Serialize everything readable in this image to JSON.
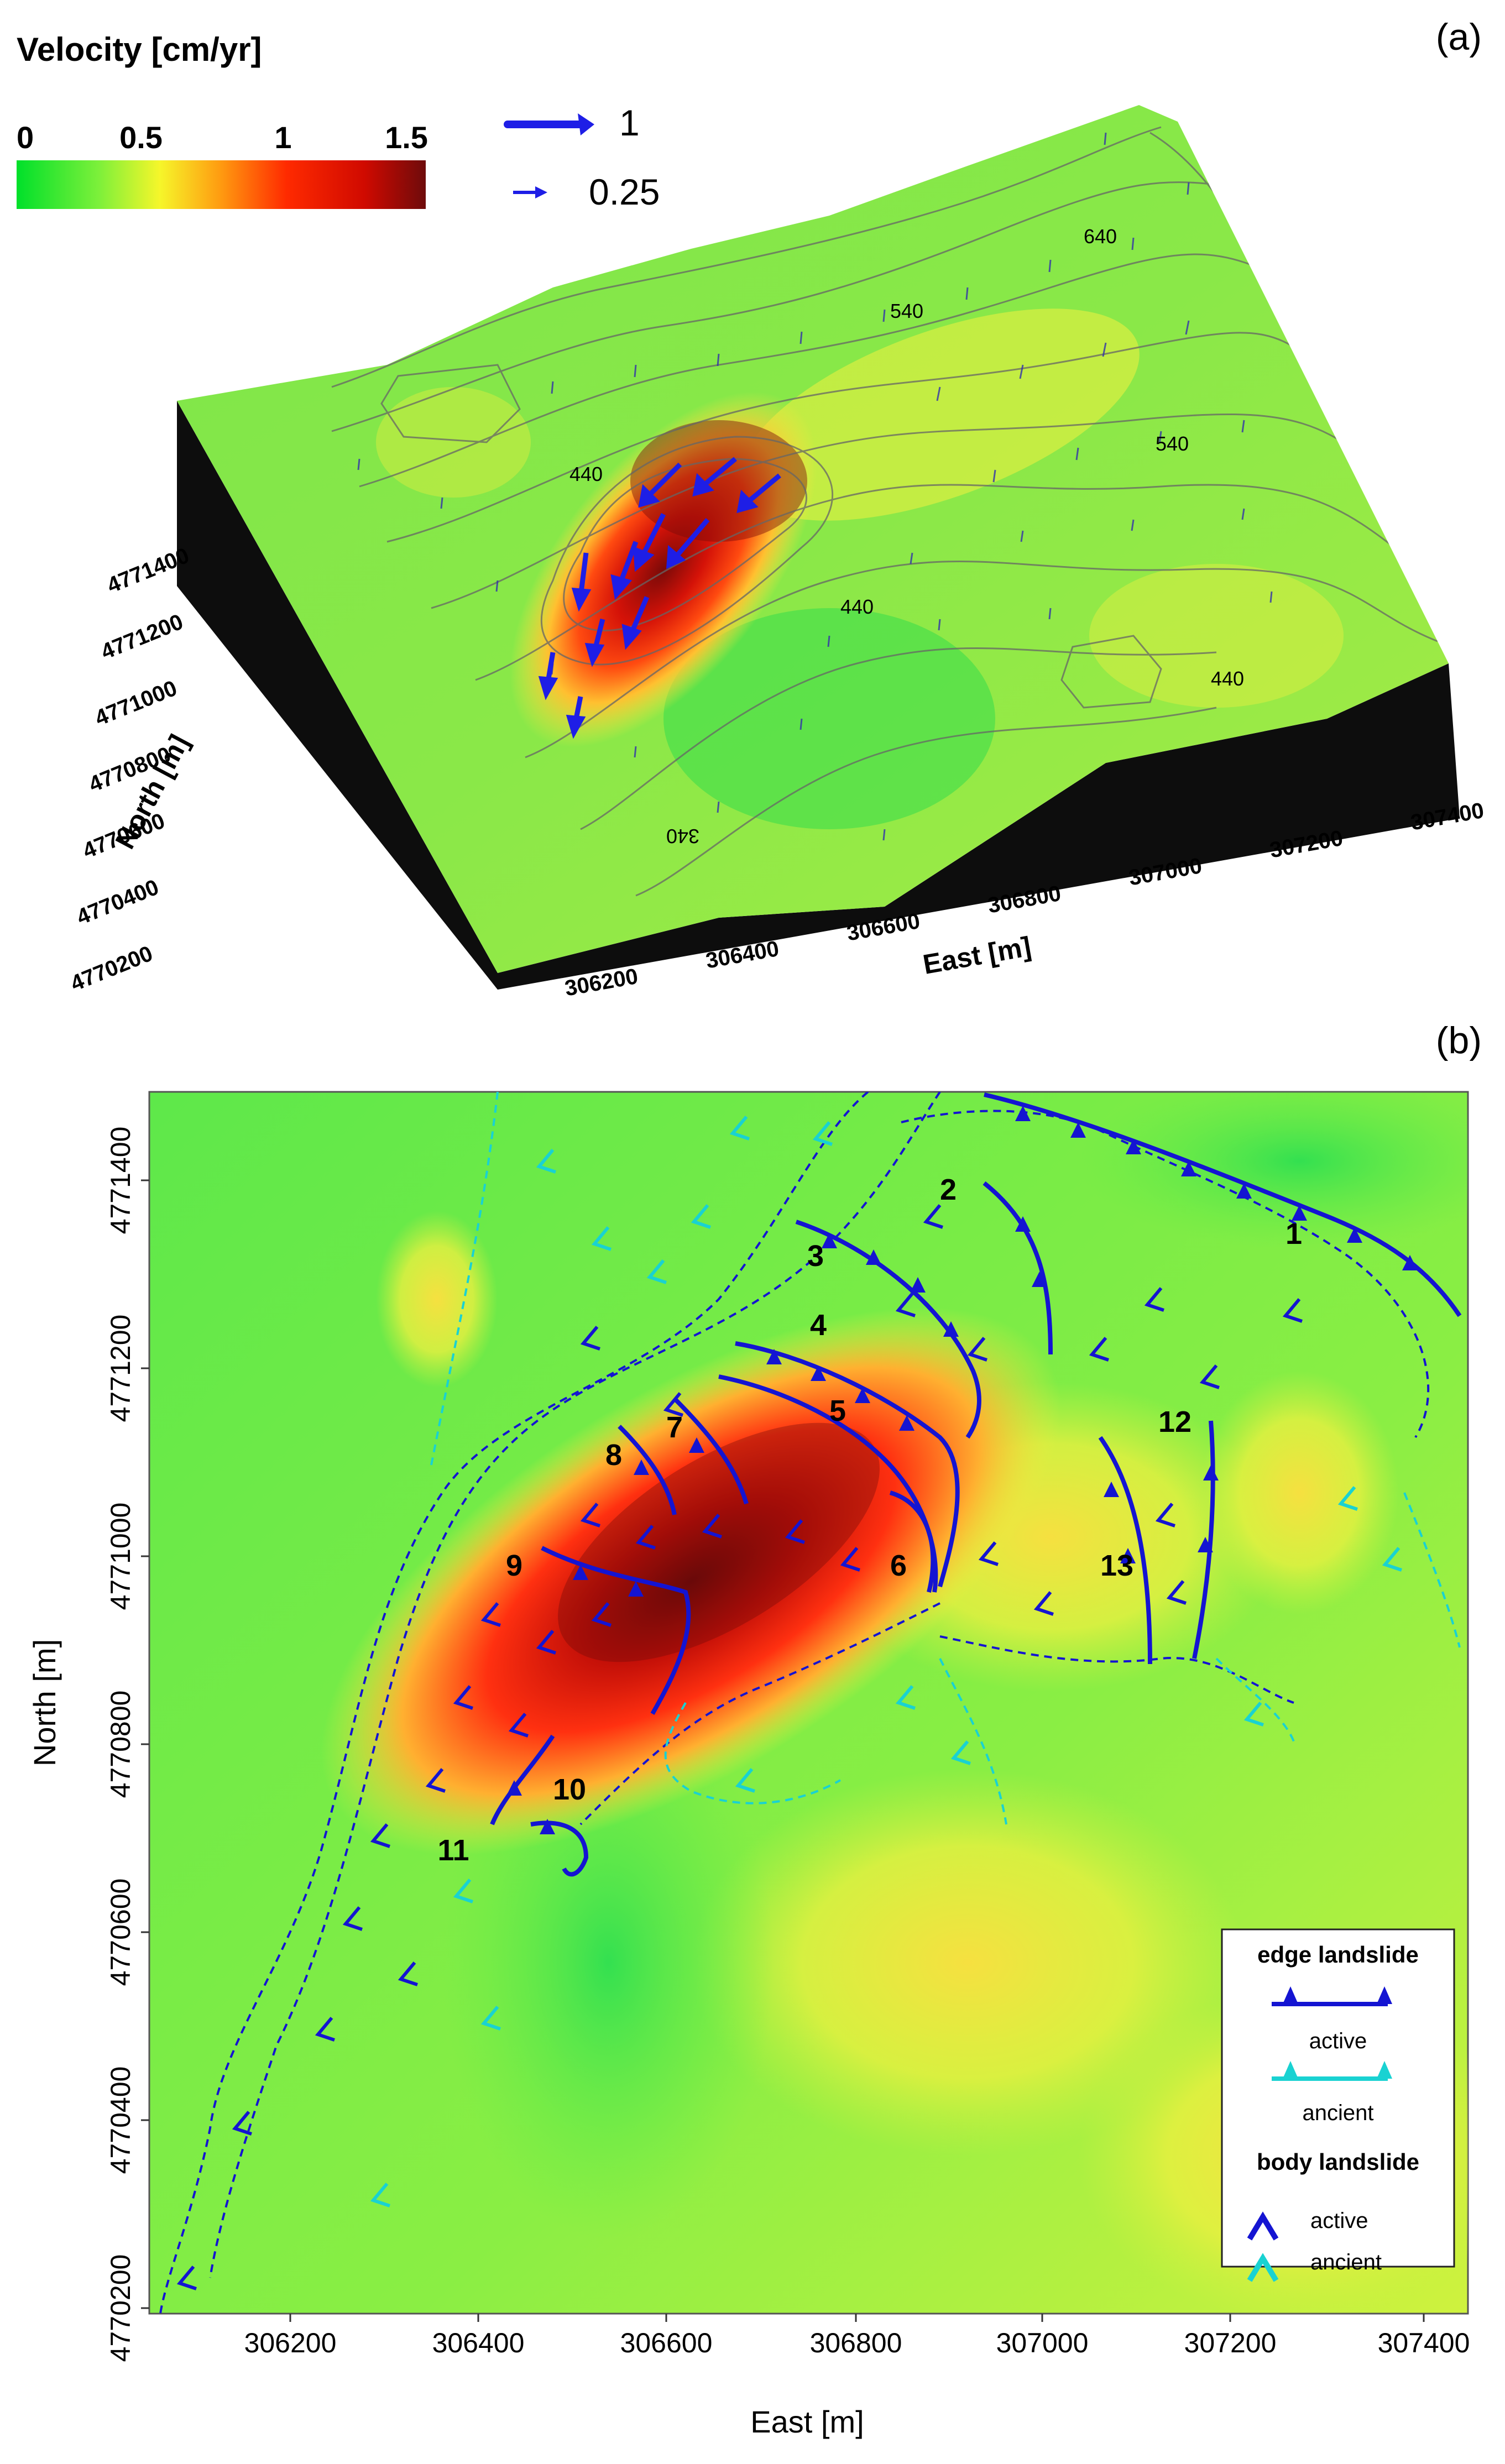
{
  "panel_a": {
    "label": "(a)",
    "colorbar": {
      "title": "Velocity [cm/yr]",
      "ticks": [
        "0",
        "0.5",
        "1",
        "1.5"
      ],
      "colors": [
        "#00e02a",
        "#7cf03a",
        "#f6f62a",
        "#ff9a10",
        "#ff2a00",
        "#d00a00",
        "#6e0b0b"
      ]
    },
    "vector_scale": [
      {
        "label": "1",
        "value": 1
      },
      {
        "label": "0.25",
        "value": 0.25
      }
    ],
    "contour_labels": [
      "640",
      "540",
      "540",
      "440",
      "440",
      "440",
      "340"
    ],
    "north_axis": {
      "title": "North [m]",
      "ticks": [
        "4771400",
        "4771200",
        "4771000",
        "4770800",
        "4770600",
        "4770400",
        "4770200"
      ]
    },
    "east_axis": {
      "title": "East [m]",
      "ticks": [
        "306200",
        "306400",
        "306600",
        "306800",
        "307000",
        "307200",
        "307400"
      ]
    }
  },
  "panel_b": {
    "label": "(b)",
    "xaxis": {
      "title": "East [m]",
      "ticks": [
        "306200",
        "306400",
        "306600",
        "306800",
        "307000",
        "307200",
        "307400"
      ]
    },
    "yaxis": {
      "title": "North [m]",
      "ticks": [
        "4771400",
        "4771200",
        "4771000",
        "4770800",
        "4770600",
        "4770400",
        "4770200"
      ]
    },
    "landslide_numbers": [
      "1",
      "2",
      "3",
      "4",
      "5",
      "6",
      "7",
      "8",
      "9",
      "10",
      "11",
      "12",
      "13"
    ],
    "legend": {
      "edge_title": "edge landslide",
      "edge_active": "active",
      "edge_ancient": "ancient",
      "body_title": "body landslide",
      "body_active": "active",
      "body_ancient": "ancient"
    },
    "colors": {
      "active": "#1414d2",
      "ancient": "#19d2d2"
    }
  }
}
